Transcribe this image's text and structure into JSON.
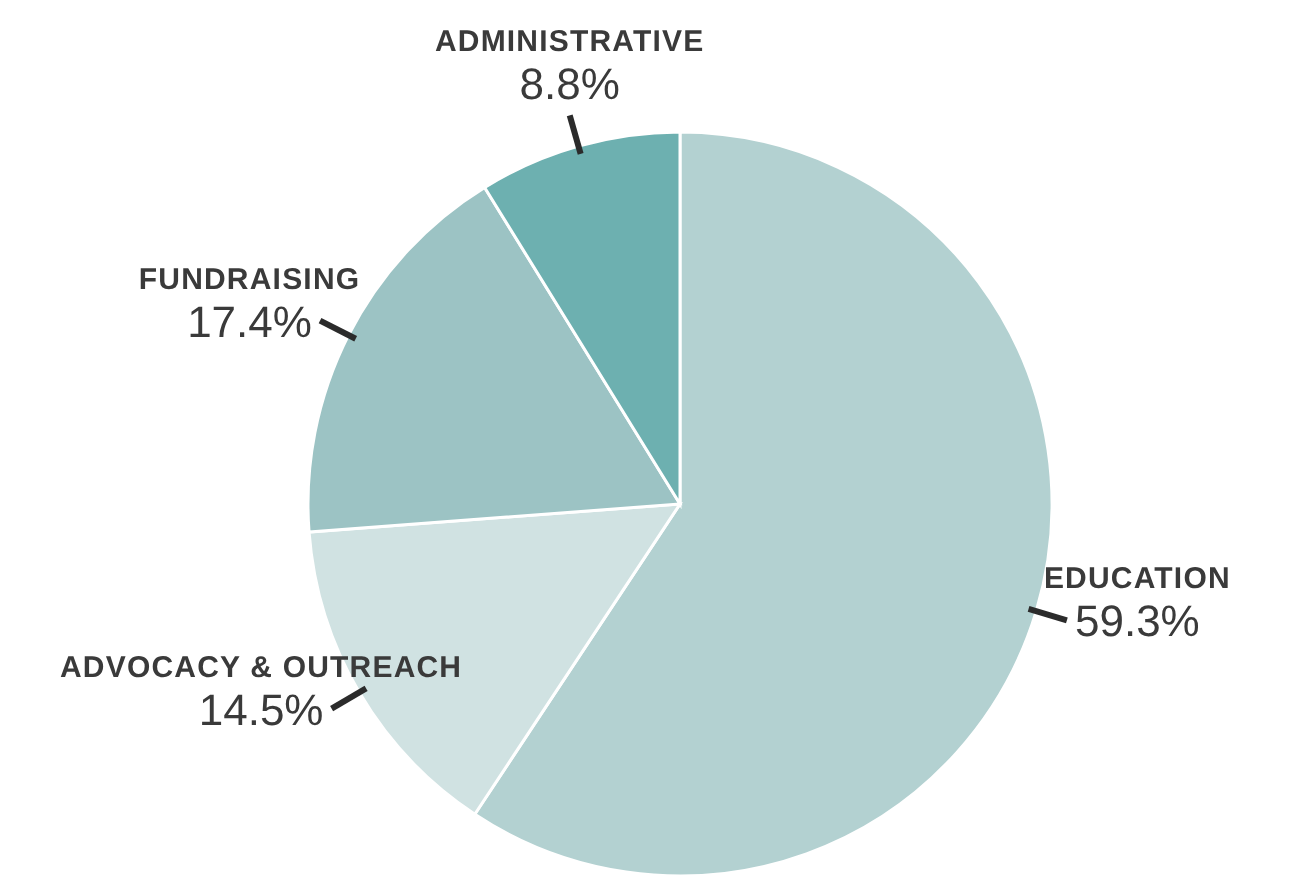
{
  "chart_data": {
    "type": "pie",
    "categories": [
      "EDUCATION",
      "ADVOCACY & OUTREACH",
      "FUNDRAISING",
      "ADMINISTRATIVE"
    ],
    "values": [
      59.3,
      14.5,
      17.4,
      8.8
    ],
    "value_labels": [
      "59.3%",
      "14.5%",
      "17.4%",
      "8.8%"
    ],
    "colors": [
      "#b3d1d1",
      "#d0e2e2",
      "#9cc3c4",
      "#6db0b0"
    ],
    "legend": false
  }
}
